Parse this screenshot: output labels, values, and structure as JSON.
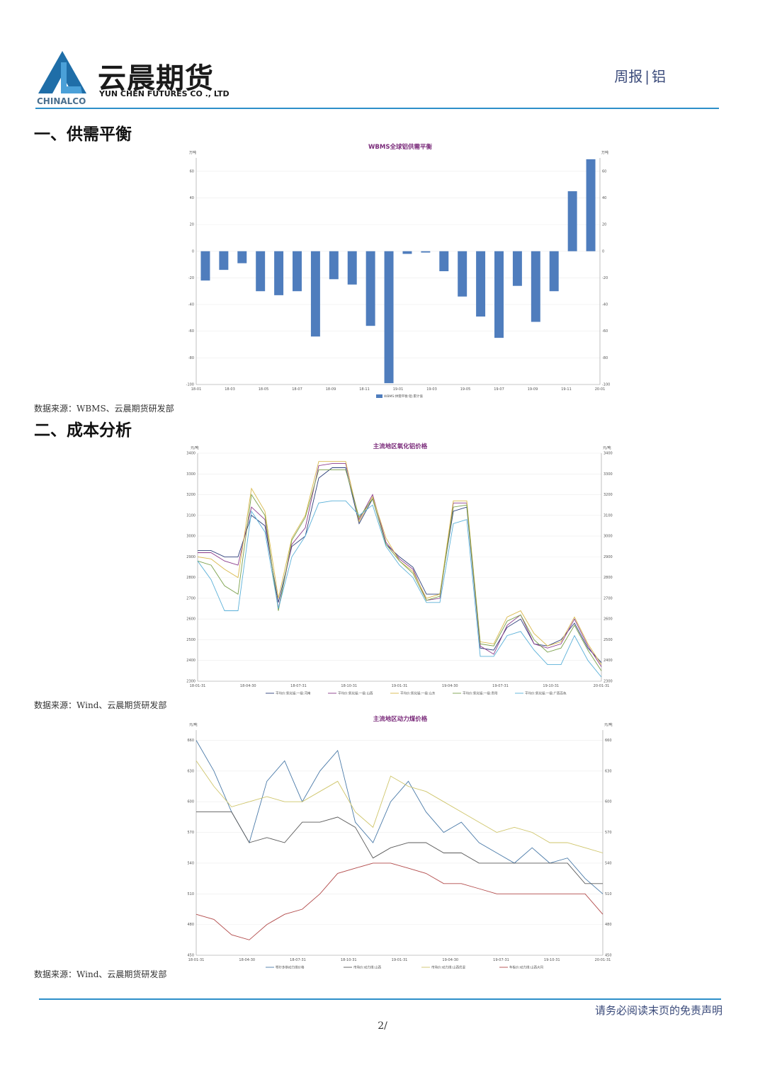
{
  "header": {
    "company_cn": "云晨期货",
    "company_en": "YUN CHEN FUTURES CO ., LTD",
    "logo_sub": "CHINALCO",
    "report_type": "周报",
    "report_topic": "铝",
    "separator": "|"
  },
  "sections": [
    {
      "title": "一、供需平衡"
    },
    {
      "title": "二、成本分析"
    }
  ],
  "sources": [
    "数据来源：WBMS、云晨期货研发部",
    "数据来源：Wind、云晨期货研发部",
    "数据来源：Wind、云晨期货研发部"
  ],
  "footer": {
    "disclaimer": "请务必阅读末页的免责声明",
    "page": "2/"
  },
  "colors": {
    "accent": "#2d8fc9",
    "bar": "#4f7dbd",
    "title": "#7a2a7a"
  },
  "chart_data": [
    {
      "type": "bar",
      "title": "WBMS全球铝供需平衡",
      "yunit_left": "万吨",
      "yunit_right": "万吨",
      "ylim": [
        -100,
        70
      ],
      "yticks": [
        60,
        40,
        20,
        0,
        -20,
        -40,
        -60,
        -80,
        -100
      ],
      "xticks": [
        "18-01",
        "18-03",
        "18-05",
        "18-07",
        "18-09",
        "18-11",
        "19-01",
        "19-03",
        "19-05",
        "19-07",
        "19-09",
        "19-11",
        "20-01"
      ],
      "legend": "WBMS:供需平衡:铝:累计值",
      "grid": true,
      "values": [
        -22,
        -14,
        -9,
        -30,
        -33,
        -30,
        -64,
        -21,
        -25,
        -56,
        -99,
        -2,
        -1,
        -15,
        -34,
        -49,
        -65,
        -26,
        -53,
        -30,
        45,
        69
      ]
    },
    {
      "type": "line",
      "title": "主流地区氧化铝价格",
      "yunit_left": "元/吨",
      "yunit_right": "元/吨",
      "ylim": [
        2300,
        3400
      ],
      "yticks": [
        3400,
        3300,
        3200,
        3100,
        3000,
        2900,
        2800,
        2700,
        2600,
        2500,
        2400,
        2300
      ],
      "xticks": [
        "18-01-31",
        "18-04-30",
        "18-07-31",
        "18-10-31",
        "19-01-31",
        "19-04-30",
        "19-07-31",
        "19-10-31",
        "20-01-31"
      ],
      "grid": true,
      "series": [
        {
          "name": "平均价:氧化铝:一级:河南",
          "color": "#2c3e7a",
          "values": [
            2930,
            2930,
            2900,
            2900,
            3100,
            3050,
            2680,
            2950,
            3000,
            3280,
            3330,
            3330,
            3060,
            3180,
            2960,
            2900,
            2850,
            2720,
            2720,
            3120,
            3140,
            2460,
            2450,
            2560,
            2600,
            2480,
            2470,
            2500,
            2580,
            2460,
            2390
          ]
        },
        {
          "name": "平均价:氧化铝:一级:山西",
          "color": "#8a3a8a",
          "values": [
            2920,
            2920,
            2880,
            2860,
            3140,
            3080,
            2650,
            2960,
            3040,
            3340,
            3350,
            3350,
            3080,
            3200,
            2970,
            2890,
            2840,
            2690,
            2700,
            3160,
            3160,
            2470,
            2430,
            2570,
            2620,
            2480,
            2460,
            2480,
            2600,
            2470,
            2370
          ]
        },
        {
          "name": "平均价:氧化铝:一级:山东",
          "color": "#d9b84a",
          "values": [
            2900,
            2890,
            2840,
            2800,
            3230,
            3120,
            2700,
            2990,
            3100,
            3360,
            3360,
            3360,
            3070,
            3190,
            2990,
            2880,
            2830,
            2700,
            2720,
            3170,
            3170,
            2490,
            2480,
            2610,
            2640,
            2530,
            2470,
            2490,
            2610,
            2480,
            2380
          ]
        },
        {
          "name": "平均价:氧化铝:一级:贵阳",
          "color": "#7aa04a",
          "values": [
            2880,
            2860,
            2760,
            2720,
            3200,
            3100,
            2640,
            2980,
            3090,
            3320,
            3320,
            3320,
            3090,
            3180,
            2960,
            2880,
            2820,
            2690,
            2710,
            3140,
            3150,
            2480,
            2470,
            2590,
            2620,
            2500,
            2440,
            2460,
            2570,
            2450,
            2350
          ]
        },
        {
          "name": "平均价:氧化铝:一级:广西百色",
          "color": "#5ab0d8",
          "values": [
            2880,
            2790,
            2640,
            2640,
            3120,
            3020,
            2650,
            2900,
            3000,
            3160,
            3170,
            3170,
            3100,
            3150,
            2950,
            2860,
            2800,
            2680,
            2680,
            3060,
            3080,
            2420,
            2420,
            2520,
            2540,
            2450,
            2380,
            2380,
            2520,
            2400,
            2320
          ]
        }
      ]
    },
    {
      "type": "line",
      "title": "主流地区动力煤价格",
      "yunit_left": "元/吨",
      "yunit_right": "元/吨",
      "ylim": [
        450,
        670
      ],
      "yticks_left": [
        660,
        630,
        600,
        570,
        540,
        510,
        480,
        450
      ],
      "yticks_right": [
        660,
        630,
        600,
        570,
        540,
        510,
        480,
        450
      ],
      "xticks": [
        "18-01-31",
        "18-04-30",
        "18-07-31",
        "18-10-31",
        "19-01-31",
        "19-04-30",
        "19-07-31",
        "19-10-31",
        "20-01-31"
      ],
      "grid": true,
      "series": [
        {
          "name": "鄂尔多斯动力煤价格",
          "color": "#4a7aa8",
          "values": [
            660,
            630,
            590,
            560,
            620,
            640,
            600,
            630,
            650,
            580,
            560,
            600,
            620,
            590,
            570,
            580,
            560,
            550,
            540,
            555,
            540,
            545,
            525,
            510
          ]
        },
        {
          "name": "市场价:动力煤:山西",
          "color": "#5a5a5a",
          "values": [
            590,
            590,
            590,
            560,
            565,
            560,
            580,
            580,
            585,
            575,
            545,
            555,
            560,
            560,
            550,
            550,
            540,
            540,
            540,
            540,
            540,
            540,
            520,
            520
          ]
        },
        {
          "name": "市场价:动力煤:山西优混",
          "color": "#cfc56a",
          "values": [
            640,
            615,
            595,
            600,
            605,
            600,
            600,
            610,
            620,
            590,
            575,
            625,
            615,
            610,
            600,
            590,
            580,
            570,
            575,
            570,
            560,
            560,
            555,
            550
          ]
        },
        {
          "name": "车板价:动力煤:山西大同",
          "color": "#b24a4a",
          "values": [
            490,
            485,
            470,
            465,
            480,
            490,
            495,
            510,
            530,
            535,
            540,
            540,
            535,
            530,
            520,
            520,
            515,
            510,
            510,
            510,
            510,
            510,
            510,
            490
          ]
        }
      ]
    }
  ]
}
